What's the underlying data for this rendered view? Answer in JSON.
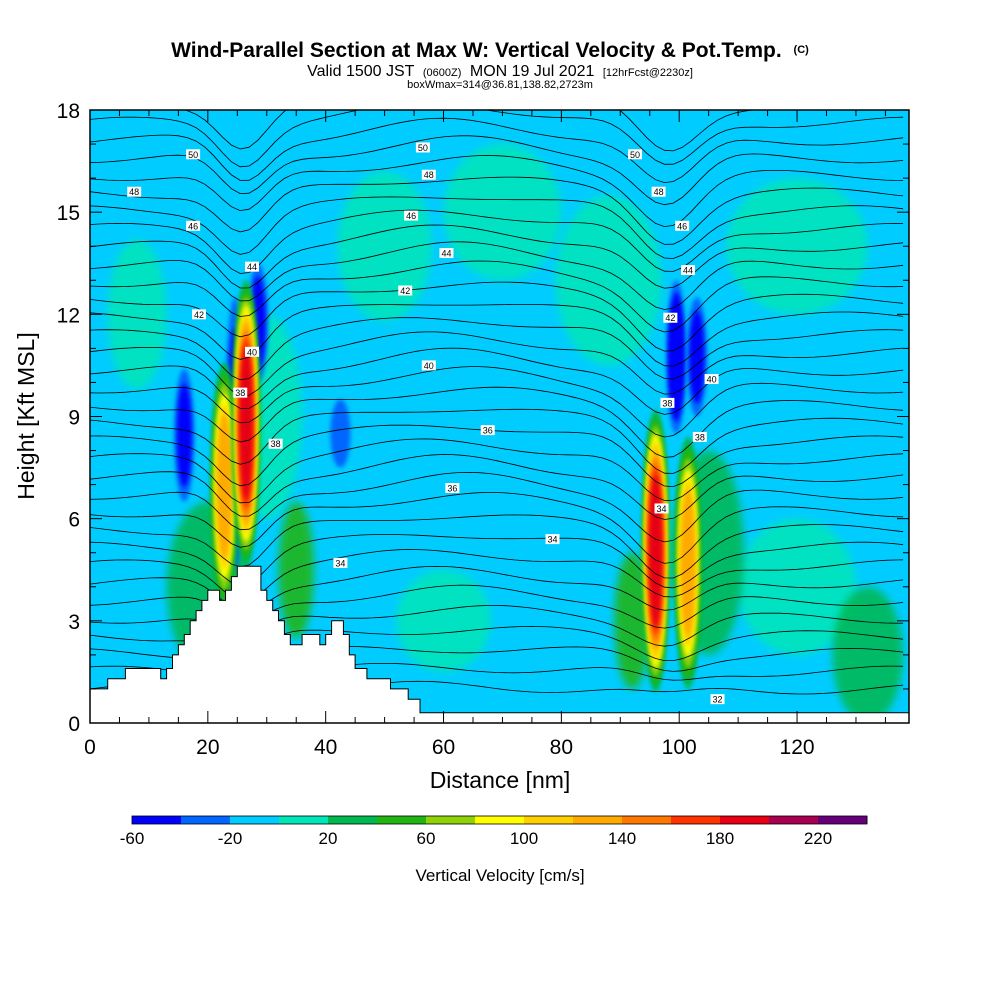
{
  "header": {
    "title_main": "Wind-Parallel Section at Max W: Vertical Velocity & Pot.Temp.",
    "title_mark": "(C)",
    "subtitle_a": "Valid 1500 JST",
    "subtitle_b": "(0600Z)",
    "subtitle_c": "MON 19 Jul 2021",
    "subtitle_d": "[12hrFcst@2230z]",
    "subtitle_3": "boxWmax=314@36.81,138.82,2723m"
  },
  "chart_data": {
    "type": "heatmap",
    "xlabel": "Distance [nm]",
    "ylabel": "Height [Kft MSL]",
    "xlim": [
      0,
      139
    ],
    "ylim": [
      0,
      18
    ],
    "x_ticks": [
      0,
      20,
      40,
      60,
      80,
      100,
      120
    ],
    "y_ticks": [
      0,
      3,
      6,
      9,
      12,
      15,
      18
    ],
    "colorbar": {
      "label": "Vertical Velocity [cm/s]",
      "levels": [
        -60,
        -40,
        -20,
        0,
        20,
        40,
        60,
        80,
        100,
        120,
        140,
        160,
        180,
        200,
        220,
        240
      ],
      "tick_labels": [
        -60,
        -20,
        20,
        60,
        100,
        140,
        180,
        220
      ],
      "colors": [
        "#0000ff",
        "#0066ff",
        "#00ccff",
        "#00e6b8",
        "#00b84d",
        "#22b411",
        "#8fd20a",
        "#ffff00",
        "#ffd000",
        "#ffaa00",
        "#ff7700",
        "#ff3300",
        "#e60012",
        "#aa0050",
        "#66007a"
      ]
    },
    "background_color": "#00ccff",
    "updrafts": [
      {
        "x": 22.8,
        "y0": 3.3,
        "y1": 10.6,
        "peak": 130
      },
      {
        "x": 26.5,
        "y0": 4.6,
        "y1": 13.0,
        "peak": 185
      },
      {
        "x": 96.0,
        "y0": 0.9,
        "y1": 9.2,
        "peak": 190
      },
      {
        "x": 101.5,
        "y0": 1.0,
        "y1": 8.4,
        "peak": 125
      }
    ],
    "downdrafts": [
      {
        "x": 16,
        "y0": 6.5,
        "y1": 10.4,
        "peak": -55
      },
      {
        "x": 24.6,
        "y0": 4.5,
        "y1": 12.5,
        "peak": -50
      },
      {
        "x": 28.5,
        "y0": 10,
        "y1": 13.5,
        "peak": -40
      },
      {
        "x": 42.5,
        "y0": 7.5,
        "y1": 9.5,
        "peak": -35
      },
      {
        "x": 99.5,
        "y0": 8.5,
        "y1": 13,
        "peak": -60
      },
      {
        "x": 103,
        "y0": 9,
        "y1": 12.5,
        "peak": -40
      }
    ],
    "theta_contours": {
      "interval": 1,
      "labels": [
        {
          "text": "50",
          "x": 17.5,
          "y": 16.7
        },
        {
          "text": "50",
          "x": 56.5,
          "y": 16.9
        },
        {
          "text": "50",
          "x": 92.5,
          "y": 16.7
        },
        {
          "text": "48",
          "x": 7.5,
          "y": 15.6
        },
        {
          "text": "48",
          "x": 57.5,
          "y": 16.1
        },
        {
          "text": "48",
          "x": 96.5,
          "y": 15.6
        },
        {
          "text": "46",
          "x": 17.5,
          "y": 14.6
        },
        {
          "text": "46",
          "x": 54.5,
          "y": 14.9
        },
        {
          "text": "46",
          "x": 100.5,
          "y": 14.6
        },
        {
          "text": "44",
          "x": 27.5,
          "y": 13.4
        },
        {
          "text": "44",
          "x": 60.5,
          "y": 13.8
        },
        {
          "text": "44",
          "x": 101.5,
          "y": 13.3
        },
        {
          "text": "42",
          "x": 18.5,
          "y": 12.0
        },
        {
          "text": "42",
          "x": 53.5,
          "y": 12.7
        },
        {
          "text": "42",
          "x": 98.5,
          "y": 11.9
        },
        {
          "text": "40",
          "x": 27.5,
          "y": 10.9
        },
        {
          "text": "40",
          "x": 57.5,
          "y": 10.5
        },
        {
          "text": "40",
          "x": 105.5,
          "y": 10.1
        },
        {
          "text": "38",
          "x": 25.5,
          "y": 9.7
        },
        {
          "text": "38",
          "x": 98.0,
          "y": 9.4
        },
        {
          "text": "38",
          "x": 31.5,
          "y": 8.2
        },
        {
          "text": "38",
          "x": 103.5,
          "y": 8.4
        },
        {
          "text": "36",
          "x": 67.5,
          "y": 8.6
        },
        {
          "text": "36",
          "x": 61.5,
          "y": 6.9
        },
        {
          "text": "34",
          "x": 97.0,
          "y": 6.3
        },
        {
          "text": "34",
          "x": 78.5,
          "y": 5.4
        },
        {
          "text": "34",
          "x": 42.5,
          "y": 4.7
        },
        {
          "text": "32",
          "x": 106.5,
          "y": 0.7
        }
      ]
    },
    "terrain": [
      [
        0,
        1.0
      ],
      [
        3,
        1.0
      ],
      [
        3,
        1.3
      ],
      [
        6,
        1.3
      ],
      [
        6,
        1.6
      ],
      [
        12,
        1.6
      ],
      [
        12,
        1.3
      ],
      [
        13,
        1.3
      ],
      [
        13,
        1.6
      ],
      [
        14,
        1.6
      ],
      [
        14,
        2.0
      ],
      [
        15,
        2.0
      ],
      [
        15,
        2.3
      ],
      [
        16,
        2.3
      ],
      [
        16,
        2.6
      ],
      [
        17,
        2.6
      ],
      [
        17,
        3.0
      ],
      [
        18,
        3.0
      ],
      [
        18,
        3.3
      ],
      [
        19,
        3.3
      ],
      [
        19,
        3.6
      ],
      [
        20,
        3.6
      ],
      [
        20,
        3.9
      ],
      [
        22,
        3.9
      ],
      [
        22,
        3.6
      ],
      [
        23,
        3.6
      ],
      [
        23,
        3.9
      ],
      [
        24,
        3.9
      ],
      [
        24,
        4.3
      ],
      [
        25,
        4.3
      ],
      [
        25,
        4.6
      ],
      [
        29,
        4.6
      ],
      [
        29,
        3.9
      ],
      [
        30,
        3.9
      ],
      [
        30,
        3.6
      ],
      [
        31,
        3.6
      ],
      [
        31,
        3.3
      ],
      [
        32,
        3.3
      ],
      [
        32,
        3.0
      ],
      [
        33,
        3.0
      ],
      [
        33,
        2.6
      ],
      [
        34,
        2.6
      ],
      [
        34,
        2.3
      ],
      [
        36,
        2.3
      ],
      [
        36,
        2.6
      ],
      [
        39,
        2.6
      ],
      [
        39,
        2.3
      ],
      [
        40,
        2.3
      ],
      [
        40,
        2.6
      ],
      [
        41,
        2.6
      ],
      [
        41,
        3.0
      ],
      [
        43,
        3.0
      ],
      [
        43,
        2.6
      ],
      [
        44,
        2.6
      ],
      [
        44,
        2.0
      ],
      [
        45,
        2.0
      ],
      [
        45,
        1.6
      ],
      [
        47,
        1.6
      ],
      [
        47,
        1.3
      ],
      [
        51,
        1.3
      ],
      [
        51,
        1.0
      ],
      [
        54,
        1.0
      ],
      [
        54,
        0.7
      ],
      [
        56,
        0.7
      ],
      [
        56,
        0.3
      ],
      [
        59,
        0.3
      ],
      [
        59,
        0.3
      ],
      [
        139,
        0.3
      ],
      [
        139,
        0
      ],
      [
        0,
        0
      ]
    ]
  }
}
